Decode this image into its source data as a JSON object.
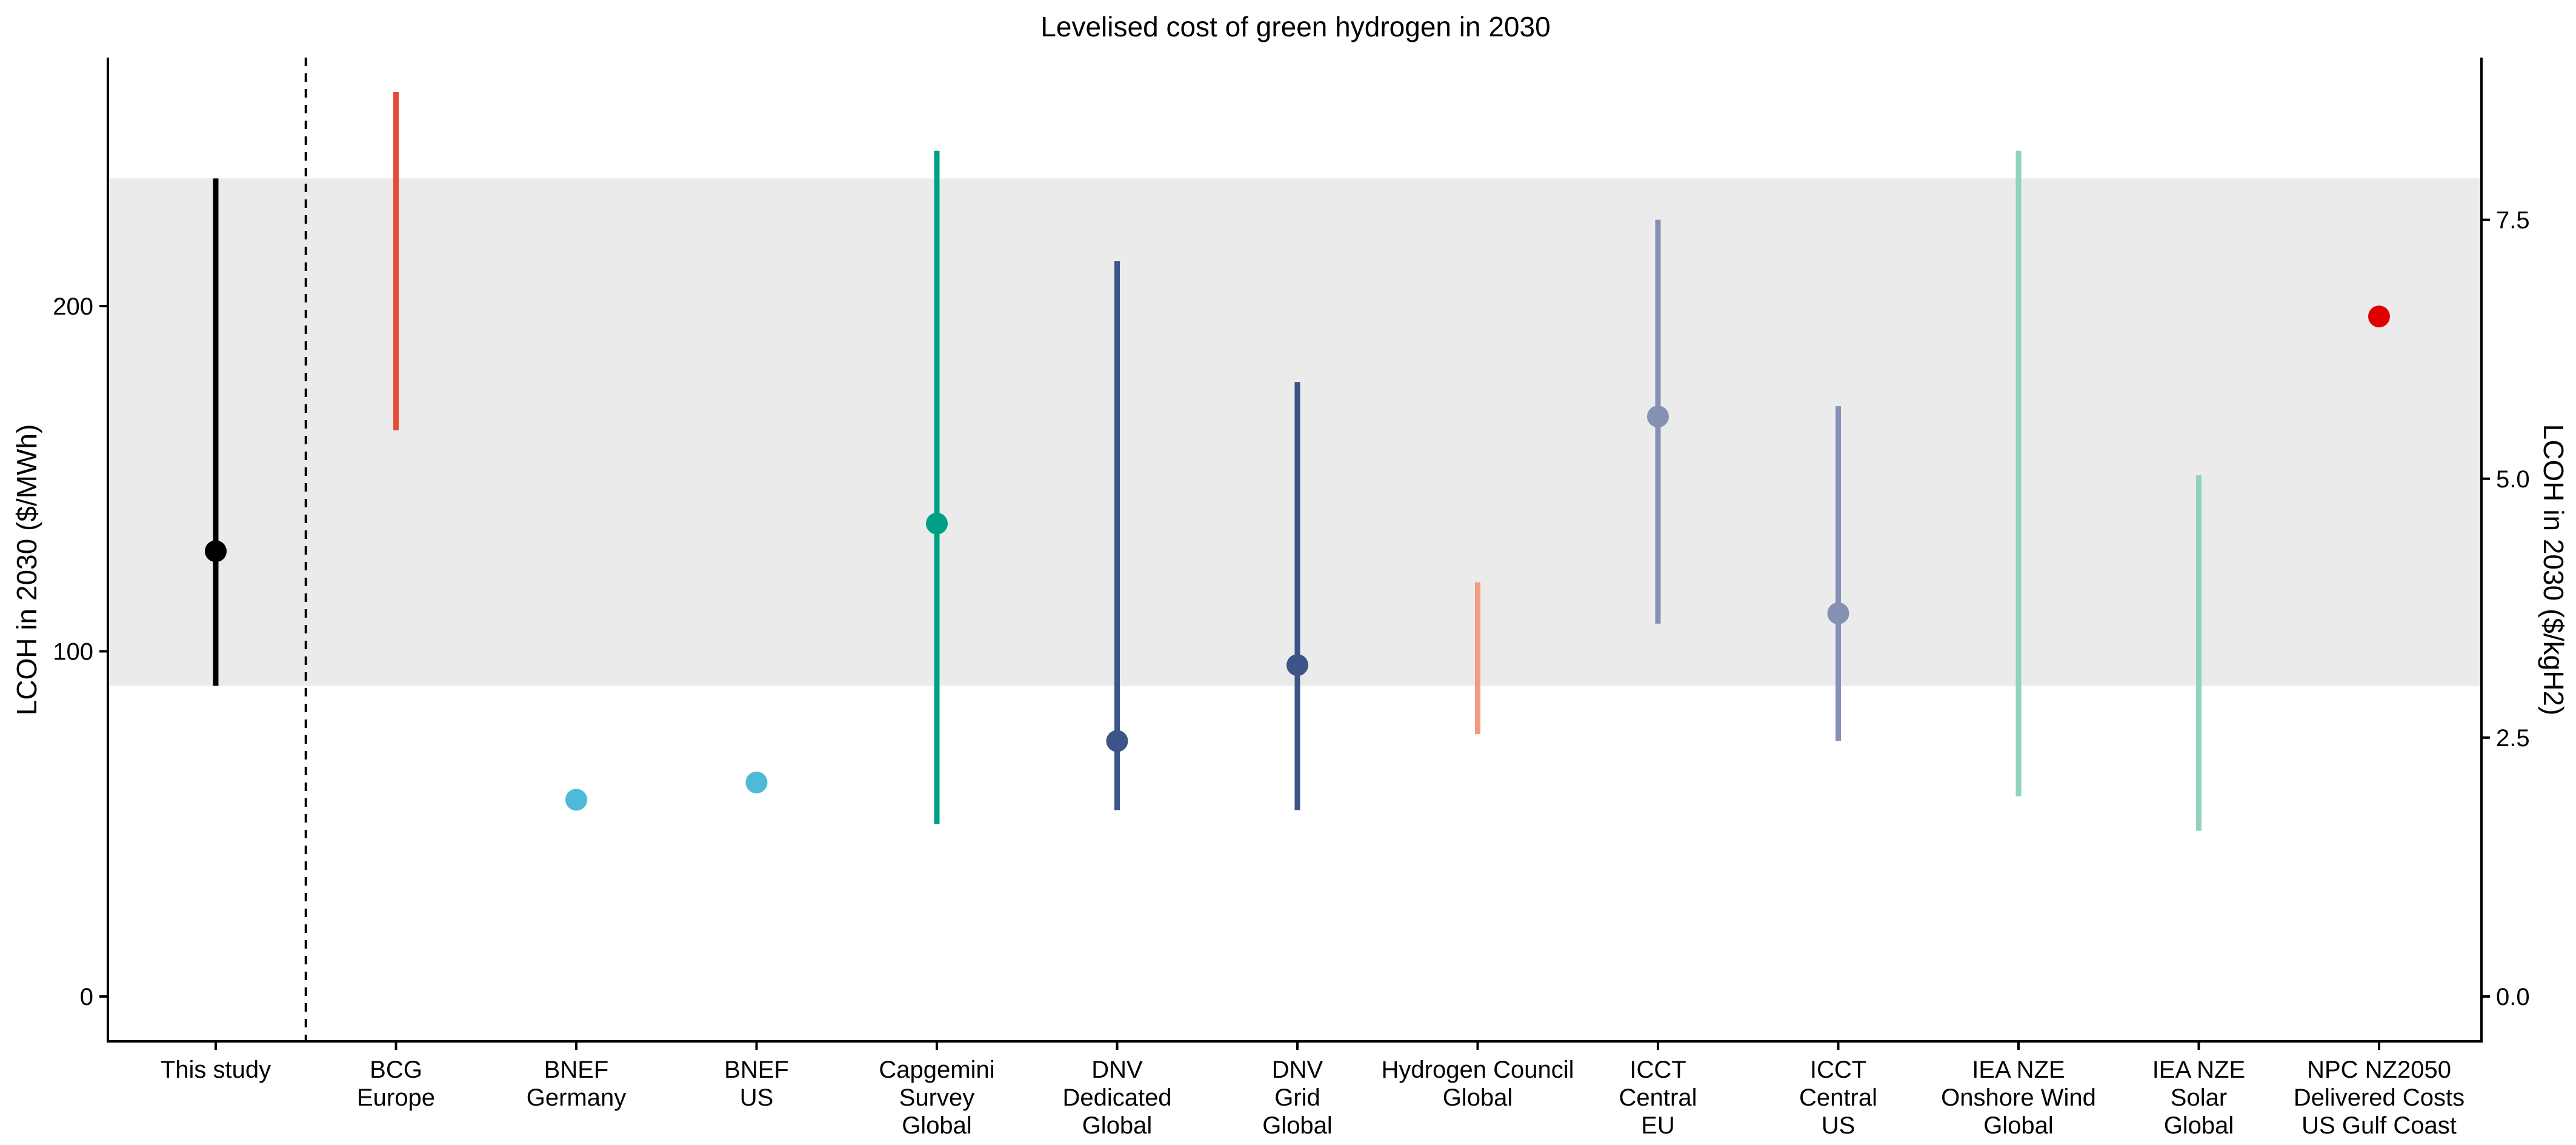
{
  "chart_data": {
    "type": "range-dot",
    "title": "Levelised cost of green hydrogen in 2030",
    "ylabel": "LCOH in 2030 ($/MWh)",
    "ylabel_right": "LCOH in 2030 ($/kgH2)",
    "ylim": [
      -13,
      272
    ],
    "y_ticks": [
      0,
      100,
      200
    ],
    "y_tick_labels": [
      "0",
      "100",
      "200"
    ],
    "y2_scale_per_kgH2": 30,
    "y2_ticks": [
      0,
      2.5,
      5,
      7.5
    ],
    "y2_tick_labels": [
      "0.0",
      "2.5",
      "5.0",
      "7.5"
    ],
    "shaded_band": {
      "low": 90,
      "high": 237,
      "color": "#ebebeb"
    },
    "separator_after": "This study",
    "grid": false,
    "legend": "none",
    "categories": [
      {
        "label": [
          "This study"
        ],
        "low": 90,
        "high": 237,
        "point": 129,
        "color": "#000000"
      },
      {
        "label": [
          "BCG",
          "Europe"
        ],
        "low": 164,
        "high": 262,
        "point": null,
        "color": "#e64b35"
      },
      {
        "label": [
          "BNEF",
          "Germany"
        ],
        "low": null,
        "high": null,
        "point": 57,
        "color": "#4dbbd5"
      },
      {
        "label": [
          "BNEF",
          "US"
        ],
        "low": null,
        "high": null,
        "point": 62,
        "color": "#4dbbd5"
      },
      {
        "label": [
          "Capgemini",
          "Survey",
          "Global"
        ],
        "low": 50,
        "high": 245,
        "point": 137,
        "color": "#00a087"
      },
      {
        "label": [
          "DNV",
          "Dedicated",
          "Global"
        ],
        "low": 54,
        "high": 213,
        "point": 74,
        "color": "#3c5488"
      },
      {
        "label": [
          "DNV",
          "Grid",
          "Global"
        ],
        "low": 54,
        "high": 178,
        "point": 96,
        "color": "#3c5488"
      },
      {
        "label": [
          "Hydrogen Council",
          "Global"
        ],
        "low": 76,
        "high": 120,
        "point": null,
        "color": "#f39b7f"
      },
      {
        "label": [
          "ICCT",
          "Central",
          "EU"
        ],
        "low": 108,
        "high": 225,
        "point": 168,
        "color": "#8491b4"
      },
      {
        "label": [
          "ICCT",
          "Central",
          "US"
        ],
        "low": 74,
        "high": 171,
        "point": 111,
        "color": "#8491b4"
      },
      {
        "label": [
          "IEA NZE",
          "Onshore Wind",
          "Global"
        ],
        "low": 58,
        "high": 245,
        "point": null,
        "color": "#91d1c2"
      },
      {
        "label": [
          "IEA NZE",
          "Solar",
          "Global"
        ],
        "low": 48,
        "high": 151,
        "point": null,
        "color": "#91d1c2"
      },
      {
        "label": [
          "NPC NZ2050",
          "Delivered Costs",
          "US Gulf Coast"
        ],
        "low": null,
        "high": null,
        "point": 197,
        "color": "#e00000"
      }
    ]
  }
}
